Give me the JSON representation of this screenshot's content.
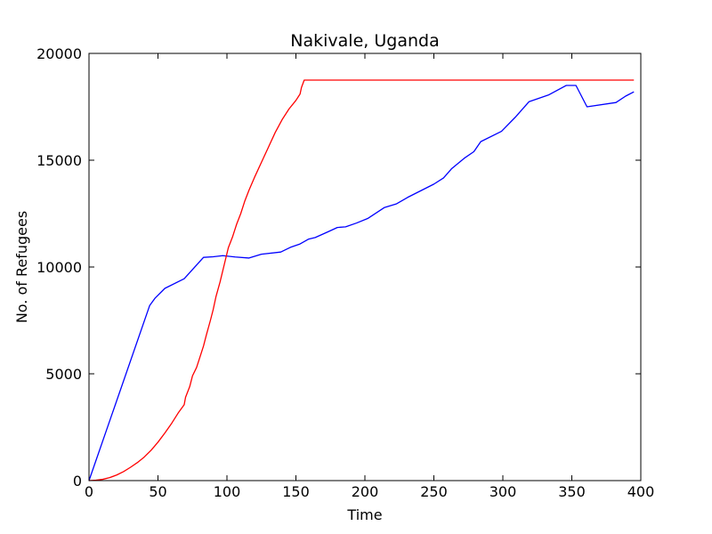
{
  "chart_data": {
    "type": "line",
    "title": "Nakivale, Uganda",
    "xlabel": "Time",
    "ylabel": "No. of Refugees",
    "xlim": [
      0,
      400
    ],
    "ylim": [
      0,
      20000
    ],
    "xticks": [
      "0",
      "50",
      "100",
      "150",
      "200",
      "250",
      "300",
      "350",
      "400"
    ],
    "yticks": [
      "0",
      "5000",
      "10000",
      "15000",
      "20000"
    ],
    "grid": false,
    "legend": "none",
    "series": [
      {
        "color": "#0000ff",
        "x": [
          0,
          44,
          48,
          55,
          69,
          83,
          90,
          97,
          106,
          116,
          125,
          139,
          146,
          153,
          159,
          164,
          173,
          180,
          186,
          194,
          202,
          214,
          223,
          231,
          250,
          257,
          263,
          272,
          279,
          284,
          299,
          309,
          319,
          333,
          346,
          353,
          361,
          382,
          389,
          395
        ],
        "y": [
          0,
          8200,
          8550,
          9000,
          9450,
          10450,
          10480,
          10530,
          10470,
          10420,
          10600,
          10700,
          10920,
          11080,
          11300,
          11380,
          11640,
          11850,
          11880,
          12060,
          12270,
          12780,
          12960,
          13260,
          13880,
          14170,
          14610,
          15090,
          15400,
          15870,
          16350,
          17010,
          17740,
          18050,
          18500,
          18500,
          17500,
          17700,
          18000,
          18200
        ]
      },
      {
        "color": "#ff0000",
        "x": [
          0,
          5,
          10,
          15,
          20,
          25,
          30,
          35,
          40,
          45,
          50,
          55,
          60,
          65,
          69,
          70,
          73,
          75,
          78,
          81,
          83,
          85,
          88,
          90,
          92,
          95,
          98,
          101,
          104,
          107,
          110,
          113,
          116,
          120,
          125,
          130,
          135,
          140,
          145,
          150,
          153,
          154,
          156,
          160,
          200,
          250,
          300,
          350,
          395
        ],
        "y": [
          0,
          20,
          60,
          140,
          260,
          420,
          620,
          840,
          1100,
          1420,
          1800,
          2230,
          2690,
          3200,
          3550,
          3900,
          4400,
          4900,
          5300,
          5900,
          6300,
          6800,
          7500,
          8000,
          8600,
          9300,
          10100,
          10900,
          11400,
          12000,
          12500,
          13100,
          13600,
          14200,
          14900,
          15600,
          16300,
          16900,
          17400,
          17800,
          18100,
          18400,
          18750,
          18750,
          18750,
          18750,
          18750,
          18750,
          18750
        ]
      }
    ]
  }
}
